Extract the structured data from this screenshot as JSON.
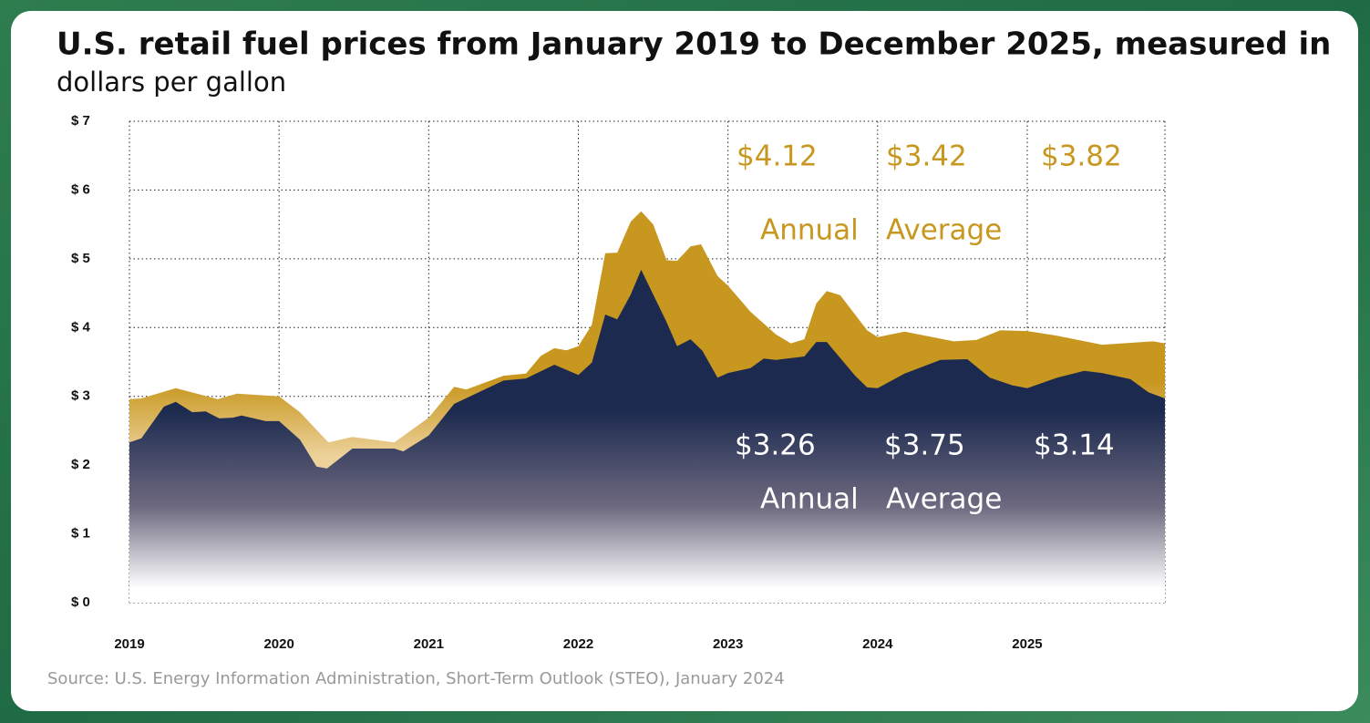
{
  "chart_data": {
    "type": "area",
    "title": "U.S. retail fuel prices from January 2019 to December 2025, measured in",
    "subtitle": "dollars per gallon",
    "source": "Source: U.S. Energy Information Administration, Short-Term Outlook (STEO), January 2024",
    "xlim": [
      2019,
      2025.92
    ],
    "xticks": [
      2019,
      2020,
      2021,
      2022,
      2023,
      2024,
      2025
    ],
    "ylim": [
      0,
      7
    ],
    "yticks": [
      {
        "value": 0,
        "label": "$ 0"
      },
      {
        "value": 1,
        "label": "$ 1"
      },
      {
        "value": 2,
        "label": "$ 2"
      },
      {
        "value": 3,
        "label": "$ 3"
      },
      {
        "value": 4,
        "label": "$ 4"
      },
      {
        "value": 5,
        "label": "$ 5"
      },
      {
        "value": 6,
        "label": "$ 6"
      },
      {
        "value": 7,
        "label": "$ 7"
      }
    ],
    "grid": true,
    "series": [
      {
        "color": "#c8971f",
        "x": [
          2019.0,
          2019.08,
          2019.31,
          2019.45,
          2019.59,
          2019.72,
          2020.0,
          2020.14,
          2020.33,
          2020.49,
          2020.77,
          2021.0,
          2021.17,
          2021.25,
          2021.5,
          2021.65,
          2021.75,
          2021.84,
          2021.92,
          2022.0,
          2022.09,
          2022.18,
          2022.26,
          2022.35,
          2022.42,
          2022.5,
          2022.59,
          2022.66,
          2022.75,
          2022.82,
          2022.93,
          2023.0,
          2023.15,
          2023.32,
          2023.42,
          2023.51,
          2023.59,
          2023.66,
          2023.75,
          2023.93,
          2024.0,
          2024.18,
          2024.51,
          2024.66,
          2024.82,
          2025.0,
          2025.2,
          2025.5,
          2025.84,
          2025.92
        ],
        "values": [
          2.96,
          2.97,
          3.12,
          3.04,
          2.96,
          3.04,
          3.0,
          2.77,
          2.33,
          2.41,
          2.33,
          2.69,
          3.14,
          3.1,
          3.3,
          3.33,
          3.59,
          3.7,
          3.67,
          3.73,
          4.04,
          5.08,
          5.09,
          5.54,
          5.69,
          5.5,
          4.98,
          4.97,
          5.18,
          5.21,
          4.75,
          4.61,
          4.23,
          3.9,
          3.77,
          3.83,
          4.35,
          4.53,
          4.47,
          3.96,
          3.86,
          3.94,
          3.8,
          3.82,
          3.96,
          3.95,
          3.88,
          3.75,
          3.8,
          3.77
        ]
      },
      {
        "color": "#1c2a4f",
        "x": [
          2019.0,
          2019.08,
          2019.23,
          2019.31,
          2019.42,
          2019.51,
          2019.6,
          2019.69,
          2019.75,
          2019.91,
          2020.0,
          2020.14,
          2020.25,
          2020.32,
          2020.49,
          2020.77,
          2020.83,
          2021.0,
          2021.17,
          2021.5,
          2021.65,
          2021.84,
          2022.0,
          2022.09,
          2022.18,
          2022.26,
          2022.35,
          2022.42,
          2022.59,
          2022.66,
          2022.75,
          2022.83,
          2022.93,
          2023.0,
          2023.15,
          2023.24,
          2023.32,
          2023.51,
          2023.59,
          2023.66,
          2023.85,
          2023.93,
          2024.0,
          2024.18,
          2024.42,
          2024.6,
          2024.75,
          2024.9,
          2025.0,
          2025.2,
          2025.38,
          2025.5,
          2025.69,
          2025.81,
          2025.92
        ],
        "values": [
          2.33,
          2.39,
          2.85,
          2.92,
          2.77,
          2.78,
          2.68,
          2.69,
          2.72,
          2.64,
          2.64,
          2.37,
          1.98,
          1.95,
          2.24,
          2.24,
          2.2,
          2.43,
          2.89,
          3.23,
          3.26,
          3.46,
          3.31,
          3.49,
          4.19,
          4.12,
          4.48,
          4.84,
          4.08,
          3.73,
          3.83,
          3.66,
          3.27,
          3.34,
          3.41,
          3.55,
          3.53,
          3.58,
          3.79,
          3.79,
          3.3,
          3.13,
          3.12,
          3.33,
          3.53,
          3.54,
          3.27,
          3.16,
          3.12,
          3.27,
          3.37,
          3.34,
          3.25,
          3.06,
          2.97
        ]
      }
    ],
    "annotations": {
      "upper_values": [
        "$4.12",
        "$3.42",
        "$3.82"
      ],
      "upper_label": [
        "Annual",
        "Average"
      ],
      "lower_values": [
        "$3.26",
        "$3.75",
        "$3.14"
      ],
      "lower_label": [
        "Annual",
        "Average"
      ]
    }
  }
}
